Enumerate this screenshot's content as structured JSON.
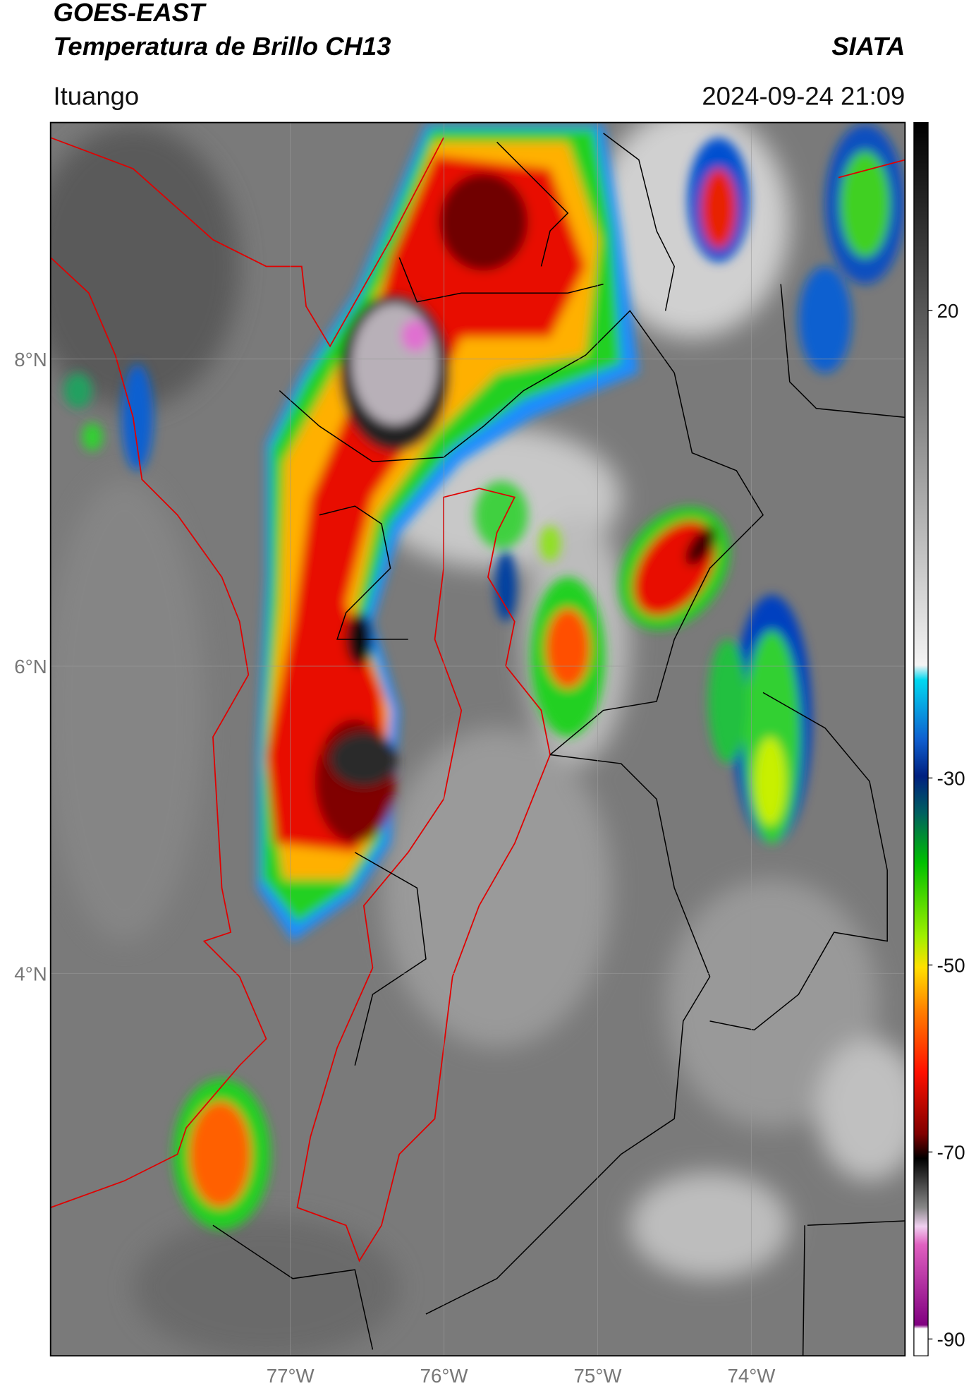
{
  "header": {
    "satellite": "GOES-EAST",
    "product": "Temperatura de Brillo CH13",
    "agency": "SIATA",
    "location": "Ituango",
    "datetime": "2024-09-24 21:09"
  },
  "map": {
    "lon_range": [
      -78.56,
      -73.0
    ],
    "lat_range": [
      1.51,
      9.54
    ],
    "lon_ticks": [
      {
        "value": -77,
        "label": "77°W"
      },
      {
        "value": -76,
        "label": "76°W"
      },
      {
        "value": -75,
        "label": "75°W"
      },
      {
        "value": -74,
        "label": "74°W"
      }
    ],
    "lat_ticks": [
      {
        "value": 8,
        "label": "8°N"
      },
      {
        "value": 6,
        "label": "6°N"
      },
      {
        "value": 4,
        "label": "4°N"
      }
    ]
  },
  "colorbar": {
    "range": [
      -91.8,
      40.1
    ],
    "ticks": [
      20,
      -30,
      -50,
      -70,
      -90
    ]
  }
}
